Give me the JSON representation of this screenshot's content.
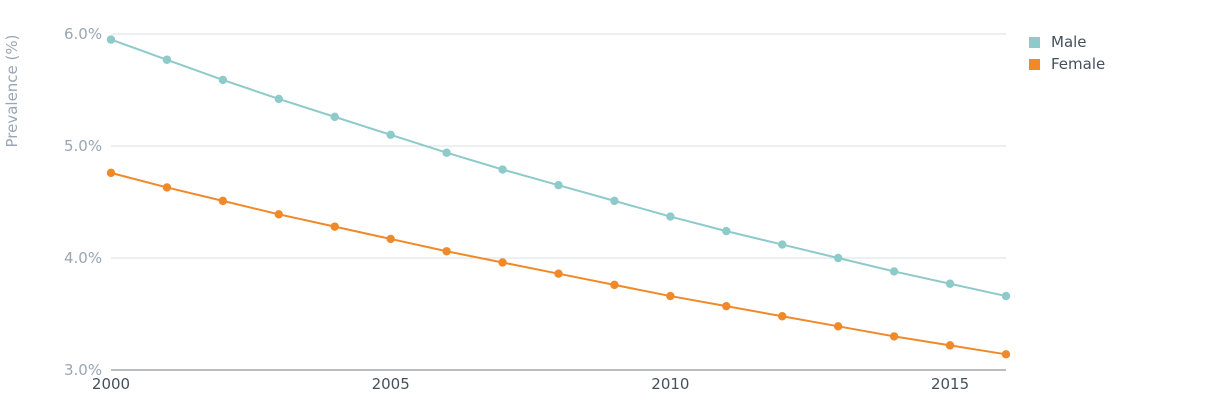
{
  "chart_data": {
    "type": "line",
    "ylabel": "Prevalence (%)",
    "ylim": [
      3.0,
      6.0
    ],
    "y_ticks": [
      {
        "value": 3.0,
        "label": "3.0%"
      },
      {
        "value": 4.0,
        "label": "4.0%"
      },
      {
        "value": 5.0,
        "label": "5.0%"
      },
      {
        "value": 6.0,
        "label": "6.0%"
      }
    ],
    "xlim": [
      2000,
      2016
    ],
    "x_ticks": [
      {
        "value": 2000,
        "label": "2000"
      },
      {
        "value": 2005,
        "label": "2005"
      },
      {
        "value": 2010,
        "label": "2010"
      },
      {
        "value": 2015,
        "label": "2015"
      }
    ],
    "x": [
      2000,
      2001,
      2002,
      2003,
      2004,
      2005,
      2006,
      2007,
      2008,
      2009,
      2010,
      2011,
      2012,
      2013,
      2014,
      2015,
      2016
    ],
    "series": [
      {
        "name": "Male",
        "color": "#8ecaca",
        "values": [
          5.95,
          5.77,
          5.59,
          5.42,
          5.26,
          5.1,
          4.94,
          4.79,
          4.65,
          4.51,
          4.37,
          4.24,
          4.12,
          4.0,
          3.88,
          3.77,
          3.66
        ]
      },
      {
        "name": "Female",
        "color": "#f0892a",
        "values": [
          4.76,
          4.63,
          4.51,
          4.39,
          4.28,
          4.17,
          4.06,
          3.96,
          3.86,
          3.76,
          3.66,
          3.57,
          3.48,
          3.39,
          3.3,
          3.22,
          3.14
        ]
      }
    ],
    "grid": true,
    "legend_position": "top-right"
  }
}
